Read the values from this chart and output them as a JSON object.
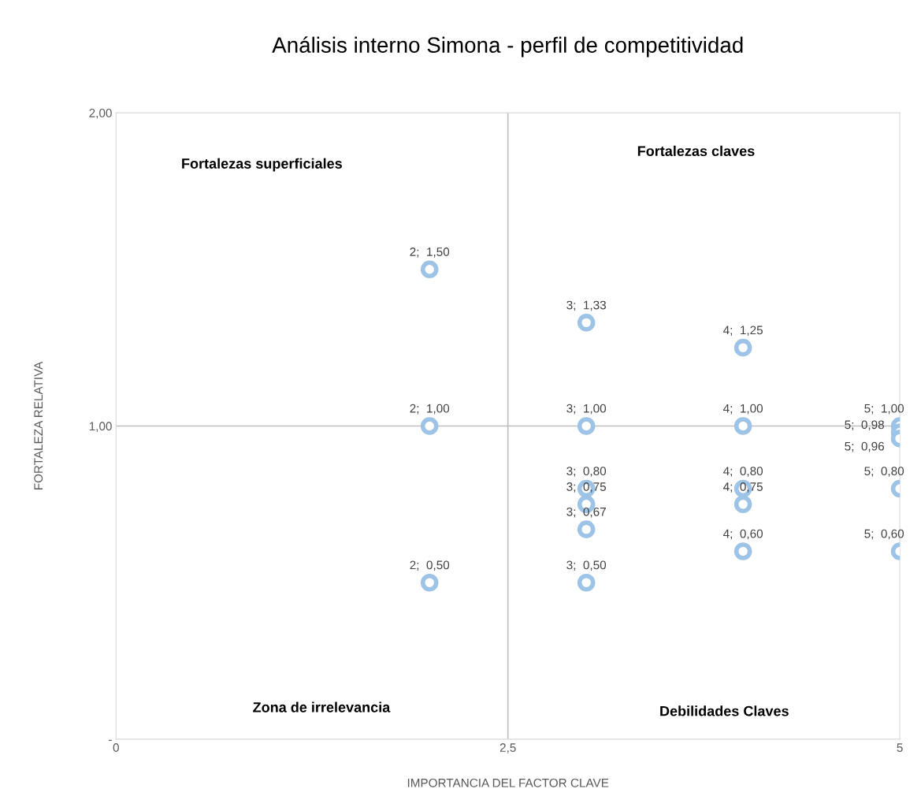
{
  "chart_data": {
    "type": "scatter",
    "title": "Análisis interno Simona - perfil de competitividad",
    "xlabel": "IMPORTANCIA DEL FACTOR CLAVE",
    "ylabel": "FORTALEZA RELATIVA",
    "series": [
      {
        "color": "#9dc3e6",
        "x": [
          2,
          2,
          2,
          3,
          3,
          3,
          3,
          3,
          3,
          4,
          4,
          4,
          4,
          4,
          5,
          5,
          5,
          5,
          5
        ],
        "values": [
          1.5,
          1.0,
          0.5,
          1.33,
          1.0,
          0.8,
          0.75,
          0.67,
          0.5,
          1.25,
          1.0,
          0.8,
          0.75,
          0.6,
          1.0,
          0.98,
          0.96,
          0.8,
          0.6
        ],
        "value_labels": [
          "2;  1,50",
          "2;  1,00",
          "2;  0,50",
          "3;  1,33",
          "3;  1,00",
          "3;  0,80",
          "3;  0,75",
          "3;  0,67",
          "3;  0,50",
          "4;  1,25",
          "4;  1,00",
          "4;  0,80",
          "4;  0,75",
          "4;  0,60",
          "5;  1,00",
          "5;  0,98",
          "5;  0,96",
          "5;  0,80",
          "5;  0,60"
        ]
      }
    ],
    "marker": "circle",
    "xlim": [
      0,
      5
    ],
    "xticks": [
      0,
      {
        "value": 2.5,
        "label": "2,5"
      },
      5
    ],
    "ylim": [
      0,
      2
    ],
    "yticks": [
      {
        "value": 0,
        "label": "-"
      },
      {
        "value": 1,
        "label": "1,00"
      },
      {
        "value": 2,
        "label": "2,00"
      }
    ],
    "ref_lines": [
      {
        "axis": "x",
        "value": 2.5
      },
      {
        "axis": "y",
        "value": 1
      }
    ],
    "grid": false,
    "legend": false,
    "annotations": [
      "Fortalezas superficiales",
      "Fortalezas claves",
      "Zona de irrelevancia",
      "Debilidades Claves"
    ]
  }
}
